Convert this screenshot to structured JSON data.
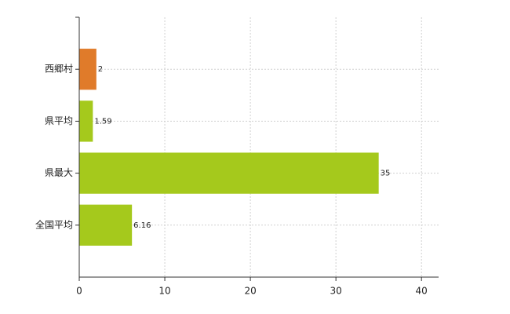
{
  "chart_data": {
    "type": "hbar",
    "categories": [
      "西郷村",
      "県平均",
      "県最大",
      "全国平均"
    ],
    "values": [
      2,
      1.59,
      35,
      6.16
    ],
    "colors": [
      "#e07b2a",
      "#a5c91c",
      "#a5c91c",
      "#a5c91c"
    ],
    "xlim": [
      0,
      42
    ],
    "xticks": [
      0,
      10,
      20,
      30,
      40
    ],
    "grid": true
  }
}
